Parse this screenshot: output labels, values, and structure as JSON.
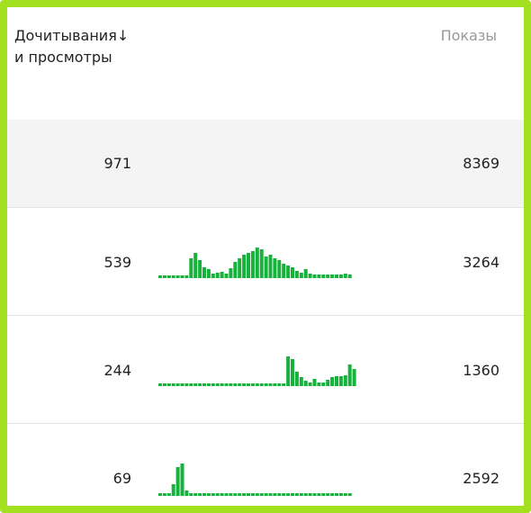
{
  "table": {
    "columns": [
      {
        "label_lines": [
          "Дочитывания",
          "и просмотры"
        ],
        "sort": "↓"
      },
      {
        "label_lines": [
          "Показы"
        ]
      }
    ],
    "rows": [
      {
        "reads": 971,
        "shows": 8369,
        "highlight": true
      },
      {
        "reads": 539,
        "shows": 3264,
        "spark": [
          1,
          1,
          1,
          1,
          1,
          1,
          1,
          20,
          26,
          18,
          10,
          8,
          3,
          4,
          5,
          3,
          9,
          16,
          20,
          24,
          26,
          28,
          32,
          30,
          22,
          24,
          20,
          18,
          14,
          12,
          10,
          6,
          4,
          8,
          3,
          2,
          2,
          2,
          2,
          2,
          2,
          2,
          3,
          2
        ]
      },
      {
        "reads": 244,
        "shows": 1360,
        "spark": [
          1,
          1,
          1,
          1,
          1,
          1,
          1,
          1,
          1,
          1,
          1,
          1,
          1,
          1,
          1,
          1,
          1,
          1,
          1,
          1,
          1,
          1,
          1,
          1,
          1,
          1,
          1,
          1,
          1,
          31,
          28,
          14,
          8,
          4,
          2,
          6,
          2,
          2,
          5,
          8,
          9,
          9,
          10,
          22,
          17
        ]
      },
      {
        "reads": 69,
        "shows": 2592,
        "spark": [
          1,
          1,
          1,
          11,
          30,
          34,
          4,
          1,
          1,
          1,
          1,
          1,
          1,
          1,
          1,
          1,
          1,
          1,
          1,
          1,
          1,
          1,
          1,
          1,
          1,
          1,
          1,
          1,
          1,
          1,
          1,
          1,
          1,
          1,
          1,
          1,
          1,
          1,
          1,
          1,
          1,
          1,
          1,
          1
        ]
      }
    ]
  }
}
